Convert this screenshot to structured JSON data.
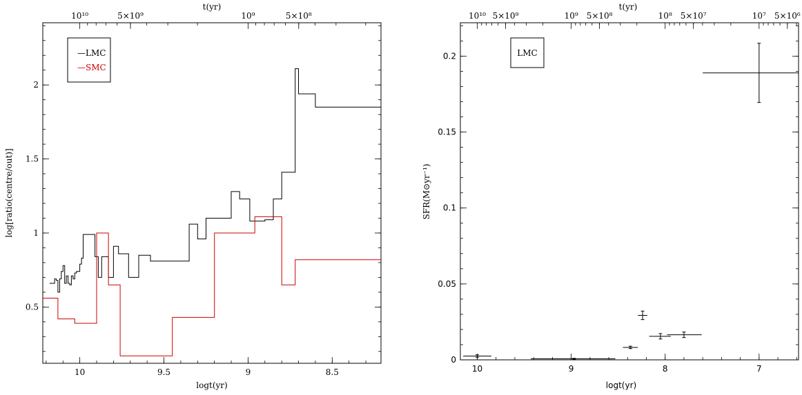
{
  "chart_data": [
    {
      "type": "line",
      "step": true,
      "xlabel": "logt(yr)",
      "ylabel": "log[ratio(centre/out)]",
      "top_axis_label": "t(yr)",
      "xlim": [
        10.22,
        8.21
      ],
      "ylim": [
        0.12,
        2.42
      ],
      "x_ticks": [
        10,
        9.5,
        9,
        8.5
      ],
      "x_tick_labels": [
        "10",
        "9.5",
        "9",
        "8.5"
      ],
      "y_ticks": [
        0.5,
        1,
        1.5,
        2
      ],
      "y_tick_labels": [
        "0.5",
        "1",
        "1.5",
        "2"
      ],
      "top_ticks": [
        10,
        9.699,
        9,
        8.699
      ],
      "top_tick_labels": [
        "10¹⁰",
        "5×10⁹",
        "10⁹",
        "5×10⁸"
      ],
      "legend_position": "top-left",
      "colors": {
        "LMC": "#000000",
        "SMC": "#cc0000"
      },
      "series": [
        {
          "name": "LMC",
          "x": [
            10.18,
            10.16,
            10.15,
            10.14,
            10.13,
            10.12,
            10.11,
            10.1,
            10.09,
            10.08,
            10.07,
            10.06,
            10.05,
            10.04,
            10.03,
            10.02,
            10.01,
            10,
            9.99,
            9.98,
            9.97,
            9.96,
            9.95,
            9.93,
            9.91,
            9.89,
            9.87,
            9.85,
            9.83,
            9.8,
            9.77,
            9.75,
            9.71,
            9.65,
            9.58,
            9.52,
            9.35,
            9.3,
            9.25,
            9.15,
            9.1,
            9.05,
            8.99,
            8.9,
            8.85,
            8.8,
            8.72,
            8.7,
            8.68,
            8.6,
            8.5,
            8.4,
            8.3,
            8.21
          ],
          "y": [
            0.66,
            0.66,
            0.69,
            0.68,
            0.6,
            0.69,
            0.74,
            0.78,
            0.66,
            0.71,
            0.66,
            0.65,
            0.71,
            0.69,
            0.73,
            0.74,
            0.74,
            0.79,
            0.83,
            0.99,
            0.99,
            0.99,
            0.99,
            0.99,
            0.84,
            0.7,
            0.84,
            0.84,
            0.7,
            0.91,
            0.86,
            0.86,
            0.7,
            0.85,
            0.81,
            0.81,
            1.06,
            0.96,
            1.1,
            1.1,
            1.28,
            1.23,
            1.08,
            1.09,
            1.23,
            1.41,
            2.11,
            1.94,
            1.94,
            1.85,
            1.85,
            1.85,
            1.85,
            1.85
          ]
        },
        {
          "name": "SMC",
          "x": [
            10.22,
            10.13,
            10.03,
            9.9,
            9.83,
            9.76,
            9.65,
            9.45,
            9.2,
            8.96,
            8.93,
            8.8,
            8.72,
            8.6,
            8.45,
            8.21
          ],
          "y": [
            0.56,
            0.42,
            0.39,
            1.0,
            0.65,
            0.17,
            0.17,
            0.43,
            1.0,
            1.11,
            1.11,
            0.65,
            0.82,
            0.82,
            0.82,
            0.82
          ]
        }
      ]
    },
    {
      "type": "scatter",
      "error_bars": true,
      "xlabel": "logt(yr)",
      "ylabel": "SFR(M⊙yr⁻¹)",
      "top_axis_label": "t(yr)",
      "xlim": [
        10.18,
        6.58
      ],
      "ylim": [
        0,
        0.222
      ],
      "x_ticks": [
        10,
        9,
        8,
        7
      ],
      "x_tick_labels": [
        "10",
        "9",
        "8",
        "7"
      ],
      "y_ticks": [
        0,
        0.05,
        0.1,
        0.15,
        0.2
      ],
      "y_tick_labels": [
        "0",
        "0.05",
        "0.1",
        "0.15",
        "0.2"
      ],
      "top_ticks": [
        10,
        9.699,
        9,
        8.699,
        8,
        7.699,
        7,
        6.699
      ],
      "top_tick_labels": [
        "10¹⁰",
        "5×10⁹",
        "10⁹",
        "5×10⁸",
        "10⁸",
        "5×10⁷",
        "10⁷",
        "5×10⁶"
      ],
      "legend_text": "LMC",
      "legend_position": "top-left",
      "points": [
        {
          "x": 10.0,
          "xmin": 9.85,
          "xmax": 10.15,
          "y": 0.0025,
          "err": 0.0008
        },
        {
          "x": 8.97,
          "xmin": 8.53,
          "xmax": 9.43,
          "y": 0.0007,
          "err": 0.0003
        },
        {
          "x": 8.37,
          "xmin": 8.29,
          "xmax": 8.45,
          "y": 0.0082,
          "err": 0.0008
        },
        {
          "x": 8.24,
          "xmin": 8.19,
          "xmax": 8.29,
          "y": 0.0293,
          "err": 0.0028
        },
        {
          "x": 8.05,
          "xmin": 7.94,
          "xmax": 8.17,
          "y": 0.0155,
          "err": 0.0018
        },
        {
          "x": 7.8,
          "xmin": 7.61,
          "xmax": 7.98,
          "y": 0.0165,
          "err": 0.0018
        },
        {
          "x": 7.0,
          "xmin": 6.58,
          "xmax": 7.6,
          "y": 0.189,
          "err": 0.0195
        }
      ]
    }
  ]
}
